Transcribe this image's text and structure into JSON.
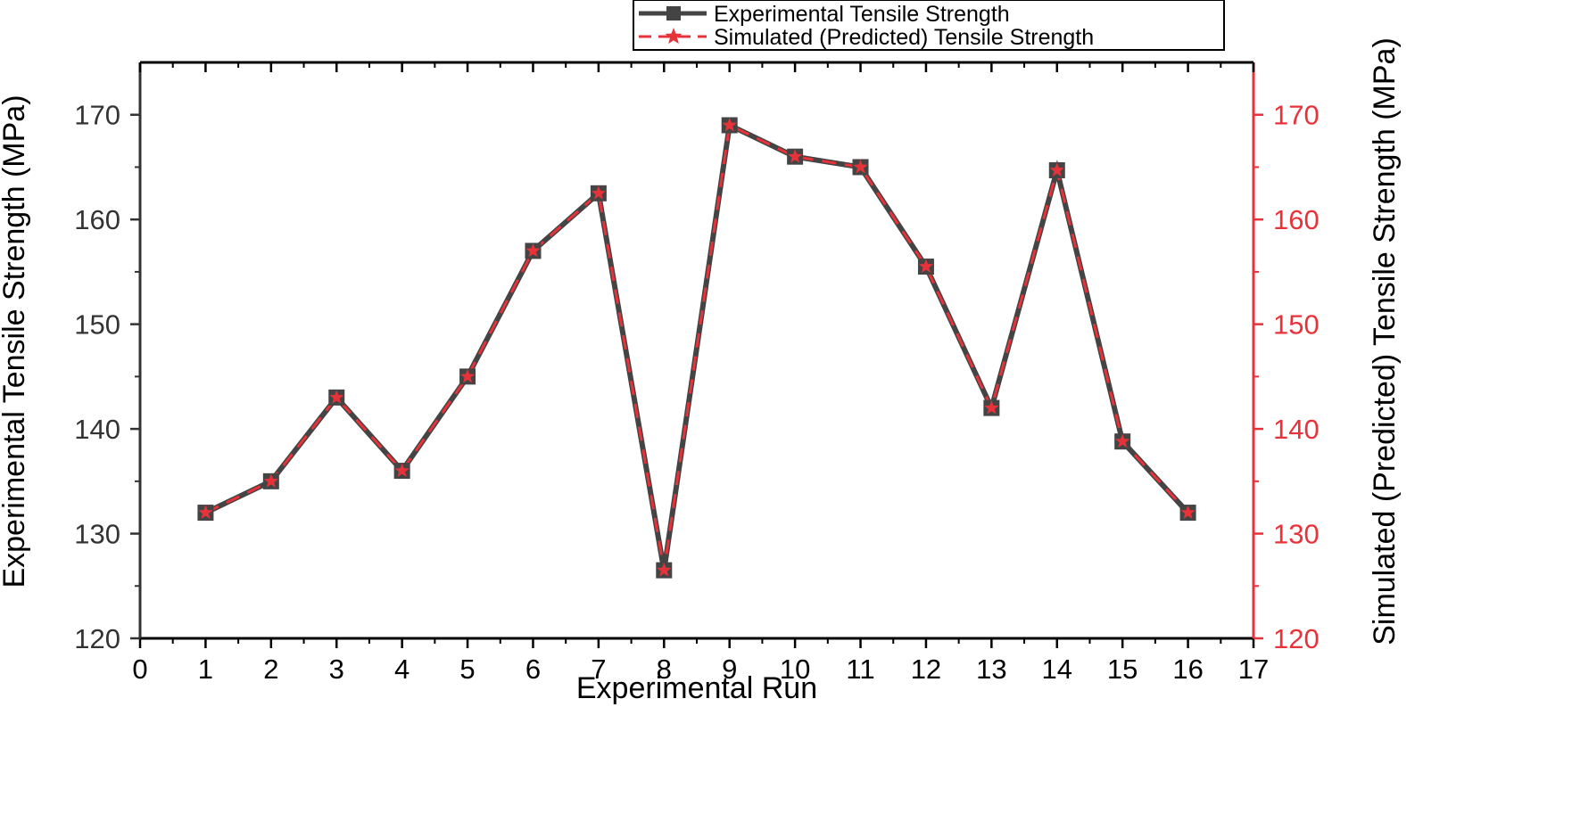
{
  "chart_data": {
    "type": "line",
    "x": [
      1,
      2,
      3,
      4,
      5,
      6,
      7,
      8,
      9,
      10,
      11,
      12,
      13,
      14,
      15,
      16
    ],
    "series": [
      {
        "name": "Experimental Tensile Strength",
        "axis": "left",
        "color": "#444444",
        "marker": "square",
        "values": [
          132,
          135,
          143,
          136,
          145,
          157,
          162.5,
          126.5,
          169,
          166,
          165,
          155.5,
          142,
          164.7,
          138.8,
          132
        ]
      },
      {
        "name": "Simulated (Predicted) Tensile Strength",
        "axis": "right",
        "color": "#e8323a",
        "marker": "star",
        "values": [
          132,
          135,
          143,
          136,
          145,
          157,
          162.5,
          126.5,
          169,
          166,
          165,
          155.5,
          142,
          164.7,
          138.8,
          132
        ]
      }
    ],
    "xlabel": "Experimental Run",
    "ylabel_left": "Experimental Tensile Strength (MPa)",
    "ylabel_right": "Simulated (Predicted) Tensile Strength (MPa)",
    "xlim": [
      0,
      17
    ],
    "ylim": [
      120,
      175
    ],
    "x_ticks": [
      0,
      1,
      2,
      3,
      4,
      5,
      6,
      7,
      8,
      9,
      10,
      11,
      12,
      13,
      14,
      15,
      16,
      17
    ],
    "y_ticks": [
      120,
      130,
      140,
      150,
      160,
      170
    ],
    "grid": false,
    "legend_position": "top-right"
  },
  "colors": {
    "left_axis": "#333333",
    "right_axis": "#e8323a"
  }
}
